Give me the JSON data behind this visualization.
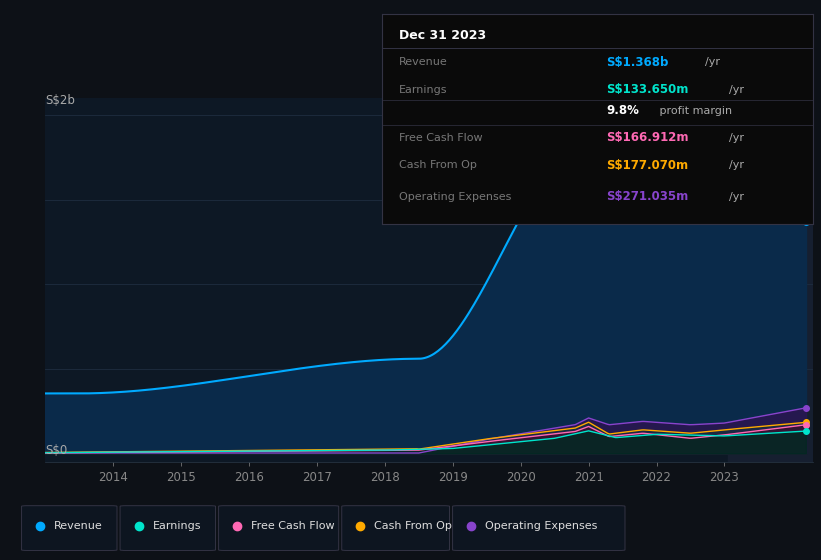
{
  "bg_color": "#0d1117",
  "plot_bg_color": "#0d1825",
  "y_label_top": "S$2b",
  "y_label_bottom": "S$0",
  "x_ticks": [
    2014,
    2015,
    2016,
    2017,
    2018,
    2019,
    2020,
    2021,
    2022,
    2023
  ],
  "revenue_color": "#00aaff",
  "revenue_fill": "#0a2a4a",
  "earnings_color": "#00e5cc",
  "earnings_fill": "#003322",
  "fcf_color": "#ff69b4",
  "fcf_fill": "#3d0030",
  "cfo_color": "#ffaa00",
  "cfo_fill": "#3d2800",
  "opex_color": "#8844cc",
  "opex_fill": "#2a0055",
  "info_box_bg": "#0a0a0a",
  "info_box_border": "#333344",
  "legend": [
    {
      "label": "Revenue",
      "color": "#00aaff"
    },
    {
      "label": "Earnings",
      "color": "#00e5cc"
    },
    {
      "label": "Free Cash Flow",
      "color": "#ff69b4"
    },
    {
      "label": "Cash From Op",
      "color": "#ffaa00"
    },
    {
      "label": "Operating Expenses",
      "color": "#8844cc"
    }
  ]
}
